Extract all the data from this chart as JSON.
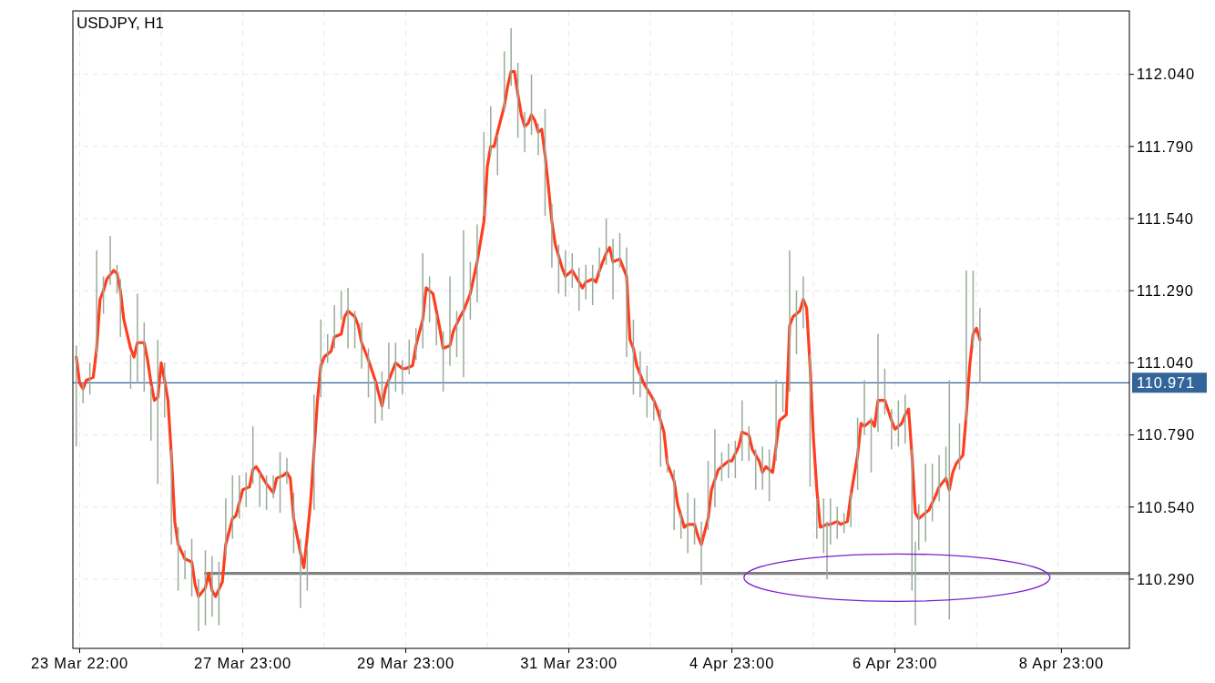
{
  "chart_data": {
    "type": "line",
    "title": "USDJPY, H1",
    "categories": [
      null,
      "23 Mar 22:00",
      null,
      null,
      null,
      null,
      null,
      null,
      null,
      null,
      null,
      null,
      null,
      null,
      null,
      null,
      null,
      null,
      null,
      null,
      null,
      null,
      null,
      null,
      null,
      null,
      null,
      null,
      null,
      null,
      null,
      null,
      null,
      null,
      null,
      null,
      null,
      null,
      null,
      null,
      null,
      null,
      null,
      null,
      null,
      null,
      null,
      null,
      null,
      "27 Mar 23:00",
      null,
      null,
      null,
      null,
      null,
      null,
      null,
      null,
      null,
      null,
      null,
      null,
      null,
      null,
      null,
      null,
      null,
      null,
      null,
      null,
      null,
      null,
      null,
      null,
      null,
      null,
      null,
      null,
      null,
      null,
      null,
      null,
      null,
      null,
      null,
      null,
      null,
      null,
      null,
      null,
      null,
      null,
      null,
      null,
      null,
      null,
      null,
      "29 Mar 23:00",
      null,
      null,
      null,
      null,
      null,
      null,
      null,
      null,
      null,
      null,
      null,
      null,
      null,
      null,
      null,
      null,
      null,
      null,
      null,
      null,
      null,
      null,
      null,
      null,
      null,
      null,
      null,
      null,
      null,
      null,
      null,
      null,
      null,
      null,
      null,
      null,
      null,
      null,
      null,
      null,
      null,
      null,
      null,
      null,
      null,
      null,
      null,
      "31 Mar 23:00",
      null,
      null,
      null,
      null,
      null,
      null,
      null,
      null,
      null,
      null,
      null,
      null,
      null,
      null,
      null,
      null,
      null,
      null,
      null,
      null,
      null,
      null,
      null,
      null,
      null,
      null,
      null,
      null,
      null,
      null,
      null,
      null,
      null,
      null,
      null,
      null,
      null,
      null,
      null,
      null,
      null,
      null,
      null,
      null,
      null,
      null,
      null,
      "4 Apr 23:00",
      null,
      null,
      null,
      null,
      null,
      null,
      null,
      null,
      null,
      null,
      null,
      null,
      null,
      null,
      null,
      null,
      null,
      null,
      null,
      null,
      null,
      null,
      null,
      null,
      null,
      null,
      null,
      null,
      null,
      null,
      null,
      null,
      null,
      null,
      null,
      null,
      null,
      null,
      null,
      null,
      null,
      null,
      null,
      null,
      null,
      null,
      null,
      "6 Apr 23:00",
      null,
      null,
      null,
      null,
      null,
      null,
      null,
      null,
      null,
      null,
      null,
      null,
      null,
      null,
      null,
      null,
      null,
      null,
      null,
      null,
      null,
      null,
      null,
      null,
      null,
      null,
      null,
      null,
      null,
      null,
      null,
      null,
      null,
      null,
      null,
      null,
      null,
      null,
      null,
      null,
      null,
      null,
      null,
      null,
      null,
      null,
      null,
      null,
      "8 Apr 23:00",
      null,
      null,
      null,
      null,
      null,
      null,
      null,
      null,
      null,
      null,
      null,
      null,
      null,
      null,
      null,
      null,
      null,
      null,
      null,
      null
    ],
    "ylim": [
      110.05,
      112.26
    ],
    "yticks": [
      {
        "value": 110.29,
        "label": "110.290"
      },
      {
        "value": 110.54,
        "label": "110.540"
      },
      {
        "value": 110.79,
        "label": "110.790"
      },
      {
        "value": 111.04,
        "label": "111.040"
      },
      {
        "value": 111.29,
        "label": "111.290"
      },
      {
        "value": 111.54,
        "label": "111.540"
      },
      {
        "value": 111.79,
        "label": "111.790"
      },
      {
        "value": 112.04,
        "label": "112.040"
      }
    ],
    "grid": true,
    "ref_lines": [
      {
        "axis": "y",
        "value": 110.971,
        "label": "110.971",
        "color": "#34659a"
      }
    ],
    "series": [
      {
        "type": "bar",
        "color": "#9aab9a",
        "base": [
          110.75,
          null,
          110.9,
          null,
          110.93,
          null,
          111.07,
          null,
          111.21,
          null,
          111.31,
          null,
          111.28,
          111.13,
          null,
          null,
          110.95,
          null,
          110.97,
          null,
          110.94,
          null,
          110.77,
          null,
          110.62,
          null,
          110.85,
          null,
          110.41,
          null,
          110.25,
          null,
          110.29,
          null,
          110.23,
          null,
          110.11,
          null,
          110.13,
          null,
          110.16,
          null,
          110.13,
          null,
          110.37,
          null,
          110.43,
          null,
          110.5,
          null,
          110.54,
          null,
          110.62,
          null,
          110.54,
          null,
          110.53,
          null,
          110.57,
          null,
          110.52,
          null,
          110.62,
          null,
          110.38,
          null,
          110.19,
          null,
          110.25,
          null,
          110.53,
          null,
          110.92,
          null,
          111.04,
          null,
          111.09,
          null,
          111.19,
          null,
          111.09,
          null,
          111.09,
          null,
          111.02,
          null,
          110.92,
          null,
          110.83,
          null,
          110.84,
          null,
          110.88,
          null,
          110.94,
          null,
          110.93,
          null,
          111.0,
          null,
          111.05,
          null,
          111.09,
          null,
          111.18,
          null,
          111.1,
          null,
          110.94,
          null,
          111.03,
          null,
          111.06,
          null,
          110.99,
          null,
          111.19,
          null,
          111.25,
          null,
          111.55,
          null,
          111.76,
          null,
          111.69,
          null,
          111.91,
          null,
          112.0,
          null,
          111.82,
          null,
          111.77,
          null,
          111.83,
          null,
          111.76,
          null,
          111.55,
          null,
          111.37,
          null,
          111.28,
          null,
          111.27,
          null,
          111.3,
          null,
          111.22,
          null,
          111.26,
          null,
          111.24,
          null,
          111.34,
          null,
          111.38,
          null,
          111.26,
          null,
          111.37,
          null,
          111.06,
          null,
          110.93,
          null,
          110.92,
          null,
          110.85,
          null,
          110.84,
          null,
          110.68,
          null,
          110.66,
          null,
          110.46,
          null,
          110.43,
          null,
          110.38,
          null,
          110.41,
          null,
          110.27,
          null,
          110.46,
          null,
          110.54,
          null,
          110.63,
          null,
          110.64,
          null,
          110.64,
          null,
          110.7,
          null,
          110.7,
          null,
          110.6,
          null,
          110.6,
          null,
          110.56,
          null,
          110.7,
          null,
          110.87,
          null,
          110.94,
          null,
          111.07,
          null,
          111.16,
          null,
          110.61,
          null,
          110.43,
          null,
          110.38,
          110.29,
          110.41,
          null,
          110.43,
          null,
          110.45,
          null,
          110.47,
          null,
          110.6,
          null,
          110.79,
          null,
          110.66,
          null,
          110.8,
          null,
          110.86,
          null,
          110.74,
          null,
          110.75,
          null,
          110.76,
          null,
          110.25,
          110.13,
          110.39,
          null,
          110.42,
          null,
          110.49,
          null,
          110.56,
          null,
          110.63,
          110.15,
          null,
          null,
          110.67,
          null,
          110.84,
          null,
          111.09,
          null,
          110.97,
          null,
          null,
          null,
          null,
          null,
          null,
          null,
          null,
          null,
          null,
          null,
          null,
          null,
          null,
          null,
          null,
          null,
          null,
          null,
          null,
          null,
          null,
          null,
          null,
          null,
          null,
          null,
          null,
          null,
          null,
          null,
          null,
          null,
          null,
          null,
          null,
          null,
          null,
          null,
          null,
          null,
          null,
          null,
          null
        ],
        "values": [
          0.35,
          null,
          0.07,
          null,
          0.11,
          null,
          0.36,
          null,
          0.13,
          null,
          0.17,
          null,
          0.1,
          0.2,
          null,
          null,
          0.12,
          null,
          0.31,
          null,
          0.24,
          null,
          0.19,
          null,
          0.5,
          null,
          0.19,
          null,
          0.33,
          null,
          0.22,
          null,
          0.1,
          null,
          0.2,
          null,
          0.18,
          null,
          0.26,
          null,
          0.21,
          null,
          0.22,
          null,
          0.2,
          null,
          0.22,
          null,
          0.15,
          null,
          0.12,
          null,
          0.2,
          null,
          0.12,
          null,
          0.12,
          null,
          0.08,
          null,
          0.21,
          null,
          0.09,
          null,
          0.21,
          null,
          0.24,
          null,
          0.15,
          null,
          0.4,
          null,
          0.27,
          null,
          0.1,
          null,
          0.15,
          null,
          0.1,
          null,
          0.21,
          null,
          0.13,
          null,
          0.16,
          null,
          0.17,
          null,
          0.15,
          null,
          0.17,
          null,
          0.23,
          null,
          0.17,
          null,
          0.12,
          null,
          0.12,
          null,
          0.11,
          null,
          0.33,
          null,
          0.16,
          null,
          0.11,
          null,
          0.21,
          null,
          0.31,
          null,
          0.16,
          null,
          0.51,
          null,
          0.2,
          null,
          0.27,
          null,
          0.29,
          null,
          0.17,
          null,
          0.14,
          null,
          0.21,
          null,
          0.2,
          null,
          0.26,
          null,
          0.14,
          null,
          0.21,
          null,
          0.11,
          null,
          0.37,
          null,
          0.22,
          null,
          0.17,
          null,
          0.16,
          null,
          0.12,
          null,
          0.15,
          null,
          0.12,
          null,
          0.14,
          null,
          0.1,
          null,
          0.16,
          null,
          0.21,
          null,
          0.12,
          null,
          0.38,
          null,
          0.26,
          null,
          0.16,
          null,
          0.18,
          null,
          0.08,
          null,
          0.2,
          null,
          0.05,
          null,
          0.21,
          null,
          0.09,
          null,
          0.21,
          null,
          0.16,
          null,
          0.22,
          null,
          0.24,
          null,
          0.27,
          null,
          0.1,
          null,
          0.12,
          null,
          0.13,
          null,
          0.21,
          null,
          0.12,
          null,
          0.14,
          null,
          0.15,
          null,
          0.18,
          null,
          0.28,
          null,
          0.1,
          null,
          0.49,
          null,
          0.22,
          null,
          0.18,
          null,
          0.46,
          null,
          0.14,
          null,
          0.19,
          0.2,
          0.16,
          null,
          0.11,
          null,
          0.07,
          null,
          0.12,
          null,
          0.25,
          null,
          0.19,
          null,
          0.19,
          null,
          0.34,
          null,
          0.16,
          null,
          0.14,
          null,
          0.16,
          null,
          0.17,
          null,
          0.49,
          0.29,
          0.16,
          null,
          0.27,
          null,
          0.2,
          null,
          0.16,
          null,
          0.12,
          0.83,
          null,
          null,
          0.16,
          null,
          0.52,
          null,
          0.27,
          null,
          0.26,
          null,
          null,
          null,
          null,
          null,
          null,
          null,
          null,
          null,
          null,
          null,
          null,
          null,
          null,
          null,
          null,
          null,
          null,
          null,
          null,
          null,
          null,
          null,
          null,
          null,
          null,
          null,
          null,
          null,
          null,
          null,
          null,
          null,
          null,
          null,
          null,
          null,
          null,
          null,
          null,
          null,
          null,
          null,
          null
        ]
      },
      {
        "color": "#808080",
        "values": [
          null,
          null,
          null,
          null,
          null,
          null,
          null,
          null,
          null,
          null,
          null,
          null,
          null,
          null,
          null,
          null,
          null,
          null,
          null,
          null,
          null,
          null,
          null,
          null,
          null,
          null,
          null,
          null,
          null,
          null,
          null,
          null,
          null,
          null,
          null,
          null,
          null,
          null,
          110.31,
          null,
          null,
          null,
          null,
          null,
          null,
          null,
          null,
          null,
          null,
          null,
          null,
          null,
          null,
          null,
          null,
          null,
          null,
          null,
          null,
          null,
          null,
          null,
          null,
          null,
          null,
          null,
          null,
          null,
          null,
          null,
          null,
          null,
          null,
          null,
          null,
          null,
          null,
          null,
          null,
          null,
          null,
          null,
          null,
          null,
          null,
          null,
          null,
          null,
          null,
          null,
          null,
          null,
          null,
          null,
          null,
          null,
          null,
          null,
          null,
          null,
          null,
          null,
          null,
          null,
          null,
          null,
          null,
          null,
          null,
          null,
          null,
          null,
          null,
          null,
          null,
          null,
          null,
          null,
          null,
          null,
          null,
          null,
          null,
          null,
          null,
          null,
          null,
          null,
          null,
          null,
          null,
          null,
          null,
          null,
          null,
          null,
          null,
          null,
          null,
          null,
          null,
          null,
          null,
          null,
          null,
          null,
          null,
          null,
          null,
          null,
          null,
          null,
          null,
          null,
          null,
          null,
          null,
          null,
          null,
          null,
          null,
          null,
          null,
          null,
          null,
          null,
          null,
          null,
          null,
          null,
          null,
          null,
          null,
          null,
          null,
          null,
          null,
          null,
          null,
          null,
          null,
          null,
          null,
          null,
          null,
          null,
          null,
          null,
          null,
          null,
          null,
          null,
          null,
          null,
          null,
          null,
          null,
          null,
          null,
          null,
          null,
          null,
          null,
          null,
          null,
          null,
          null,
          null,
          null,
          null,
          null,
          null,
          null,
          null,
          null,
          null,
          null,
          null,
          null,
          null,
          null,
          null,
          null,
          null,
          null,
          null,
          null,
          null,
          null,
          null,
          null,
          null,
          null,
          null,
          null,
          null,
          null,
          null,
          null,
          null,
          null,
          null,
          null,
          null,
          null,
          null,
          null,
          null,
          null,
          null,
          null,
          null,
          null,
          null,
          null,
          null,
          null,
          null,
          null,
          null,
          null,
          null,
          null,
          null,
          null,
          null,
          null,
          null,
          null,
          null,
          null,
          null,
          null,
          null,
          null,
          null,
          null,
          null,
          null,
          null,
          null,
          null,
          null,
          null,
          null,
          null,
          null,
          null,
          null,
          null,
          null,
          null,
          null,
          null,
          null,
          null,
          null,
          null,
          null,
          null,
          null,
          null,
          null,
          null,
          null,
          null,
          null,
          null,
          null,
          null,
          110.31
        ]
      },
      {
        "color": "#ff3d1f",
        "values": [
          111.06,
          110.97,
          110.95,
          110.98,
          null,
          110.99,
          111.09,
          111.26,
          111.29,
          111.33,
          null,
          111.36,
          111.35,
          111.29,
          111.19,
          null,
          111.09,
          111.06,
          111.11,
          null,
          111.11,
          111.05,
          110.97,
          110.91,
          110.92,
          111.04,
          110.98,
          110.91,
          110.72,
          110.49,
          110.41,
          null,
          110.36,
          null,
          110.35,
          110.27,
          110.23,
          null,
          110.26,
          110.31,
          110.25,
          110.23,
          null,
          110.28,
          110.41,
          null,
          110.5,
          110.51,
          null,
          110.6,
          null,
          110.61,
          110.67,
          110.68,
          null,
          110.64,
          110.62,
          null,
          110.59,
          110.64,
          null,
          110.65,
          110.66,
          110.64,
          110.5,
          null,
          110.38,
          110.33,
          110.44,
          110.56,
          null,
          110.91,
          111.03,
          111.06,
          null,
          111.08,
          111.13,
          null,
          111.14,
          111.2,
          111.22,
          null,
          111.2,
          111.17,
          111.11,
          null,
          111.05,
          null,
          110.98,
          null,
          110.89,
          110.95,
          null,
          111.01,
          111.04,
          null,
          111.02,
          111.02,
          null,
          111.03,
          111.1,
          null,
          111.19,
          111.3,
          null,
          111.28,
          111.22,
          111.16,
          111.09,
          null,
          111.1,
          111.15,
          null,
          111.2,
          111.22,
          null,
          111.28,
          null,
          111.39,
          null,
          111.53,
          111.72,
          111.79,
          111.79,
          111.84,
          null,
          111.93,
          112.0,
          112.05,
          112.05,
          111.97,
          111.9,
          111.86,
          111.87,
          111.9,
          111.88,
          111.84,
          111.85,
          111.76,
          111.65,
          111.53,
          111.45,
          null,
          111.37,
          111.34,
          null,
          111.36,
          111.34,
          null,
          111.3,
          111.32,
          null,
          111.33,
          111.32,
          111.36,
          null,
          111.42,
          111.44,
          111.39,
          null,
          111.4,
          111.37,
          111.34,
          111.12,
          111.09,
          111.03,
          null,
          110.97,
          null,
          110.93,
          110.91,
          110.88,
          null,
          110.8,
          110.69,
          110.66,
          110.63,
          110.55,
          null,
          110.47,
          110.48,
          null,
          110.48,
          110.44,
          110.41,
          null,
          110.5,
          110.6,
          null,
          110.67,
          110.68,
          null,
          110.7,
          110.7,
          null,
          110.75,
          110.8,
          null,
          110.79,
          110.74,
          null,
          110.7,
          110.66,
          110.68,
          null,
          110.66,
          110.75,
          110.84,
          null,
          110.86,
          111.17,
          111.2,
          null,
          111.22,
          111.26,
          111.23,
          111.03,
          110.78,
          110.6,
          110.47,
          null,
          110.48,
          110.48,
          null,
          110.49,
          110.48,
          null,
          110.49,
          110.58,
          null,
          110.72,
          110.83,
          110.82,
          null,
          110.84,
          110.82,
          110.91,
          110.91,
          110.91,
          null,
          110.84,
          110.81,
          null,
          110.83,
          110.86,
          110.88,
          110.72,
          110.52,
          110.5,
          null,
          110.52,
          110.53,
          null,
          110.58,
          110.61,
          null,
          110.64,
          110.6,
          110.66,
          110.69,
          null,
          110.72,
          110.86,
          111.03,
          111.14,
          111.16,
          111.12,
          null,
          null,
          null,
          null,
          null,
          null,
          null,
          null,
          null,
          null,
          null,
          null,
          null,
          null,
          null,
          null,
          null,
          null,
          null,
          null,
          null,
          null,
          null,
          null,
          null,
          null,
          null,
          null,
          null,
          null,
          null,
          null,
          null,
          null,
          null,
          null,
          null,
          null,
          null,
          null,
          null,
          null,
          null,
          null
        ]
      }
    ]
  }
}
